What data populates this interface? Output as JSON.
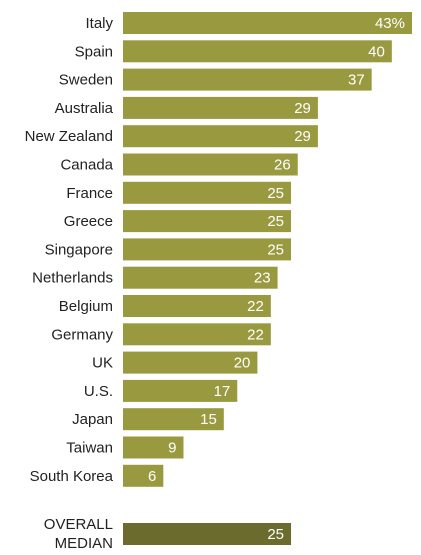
{
  "chart_data": {
    "type": "bar",
    "orientation": "horizontal",
    "categories": [
      "Italy",
      "Spain",
      "Sweden",
      "Australia",
      "New Zealand",
      "Canada",
      "France",
      "Greece",
      "Singapore",
      "Netherlands",
      "Belgium",
      "Germany",
      "UK",
      "U.S.",
      "Japan",
      "Taiwan",
      "South Korea"
    ],
    "values": [
      43,
      40,
      37,
      29,
      29,
      26,
      25,
      25,
      25,
      23,
      22,
      22,
      20,
      17,
      15,
      9,
      6
    ],
    "value_labels": [
      "43%",
      "40",
      "37",
      "29",
      "29",
      "26",
      "25",
      "25",
      "25",
      "23",
      "22",
      "22",
      "20",
      "17",
      "15",
      "9",
      "6"
    ],
    "summary": {
      "label_lines": [
        "OVERALL",
        "MEDIAN"
      ],
      "value": 25,
      "value_label": "25"
    },
    "xlim": [
      0,
      43
    ],
    "grid": false,
    "colors": {
      "bar": "#999a3f",
      "summary_bar": "#6b6b2e",
      "value_text": "#ffffff",
      "category_text": "#222222"
    }
  }
}
